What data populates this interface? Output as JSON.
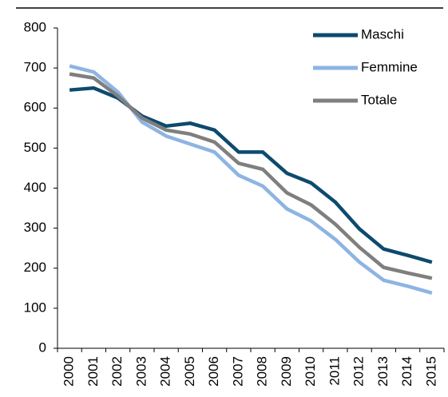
{
  "chart_data": {
    "type": "line",
    "categories": [
      "2000",
      "2001",
      "2002",
      "2003",
      "2004",
      "2005",
      "2006",
      "2007",
      "2008",
      "2009",
      "2010",
      "2011",
      "2012",
      "2013",
      "2014",
      "2015"
    ],
    "series": [
      {
        "name": "Maschi",
        "color": "#0d4a6e",
        "values": [
          645,
          650,
          625,
          580,
          555,
          562,
          545,
          490,
          490,
          437,
          413,
          365,
          298,
          248,
          232,
          215
        ]
      },
      {
        "name": "Femmine",
        "color": "#8db4e2",
        "values": [
          705,
          690,
          640,
          565,
          530,
          510,
          490,
          432,
          405,
          348,
          318,
          272,
          215,
          170,
          155,
          138
        ]
      },
      {
        "name": "Totale",
        "color": "#7f7f7f",
        "values": [
          685,
          675,
          630,
          575,
          545,
          535,
          515,
          462,
          447,
          388,
          358,
          310,
          252,
          202,
          188,
          175
        ]
      }
    ],
    "ylim": [
      0,
      800
    ],
    "yticks": [
      0,
      100,
      200,
      300,
      400,
      500,
      600,
      700,
      800
    ],
    "grid": false,
    "legend": "top-right"
  }
}
